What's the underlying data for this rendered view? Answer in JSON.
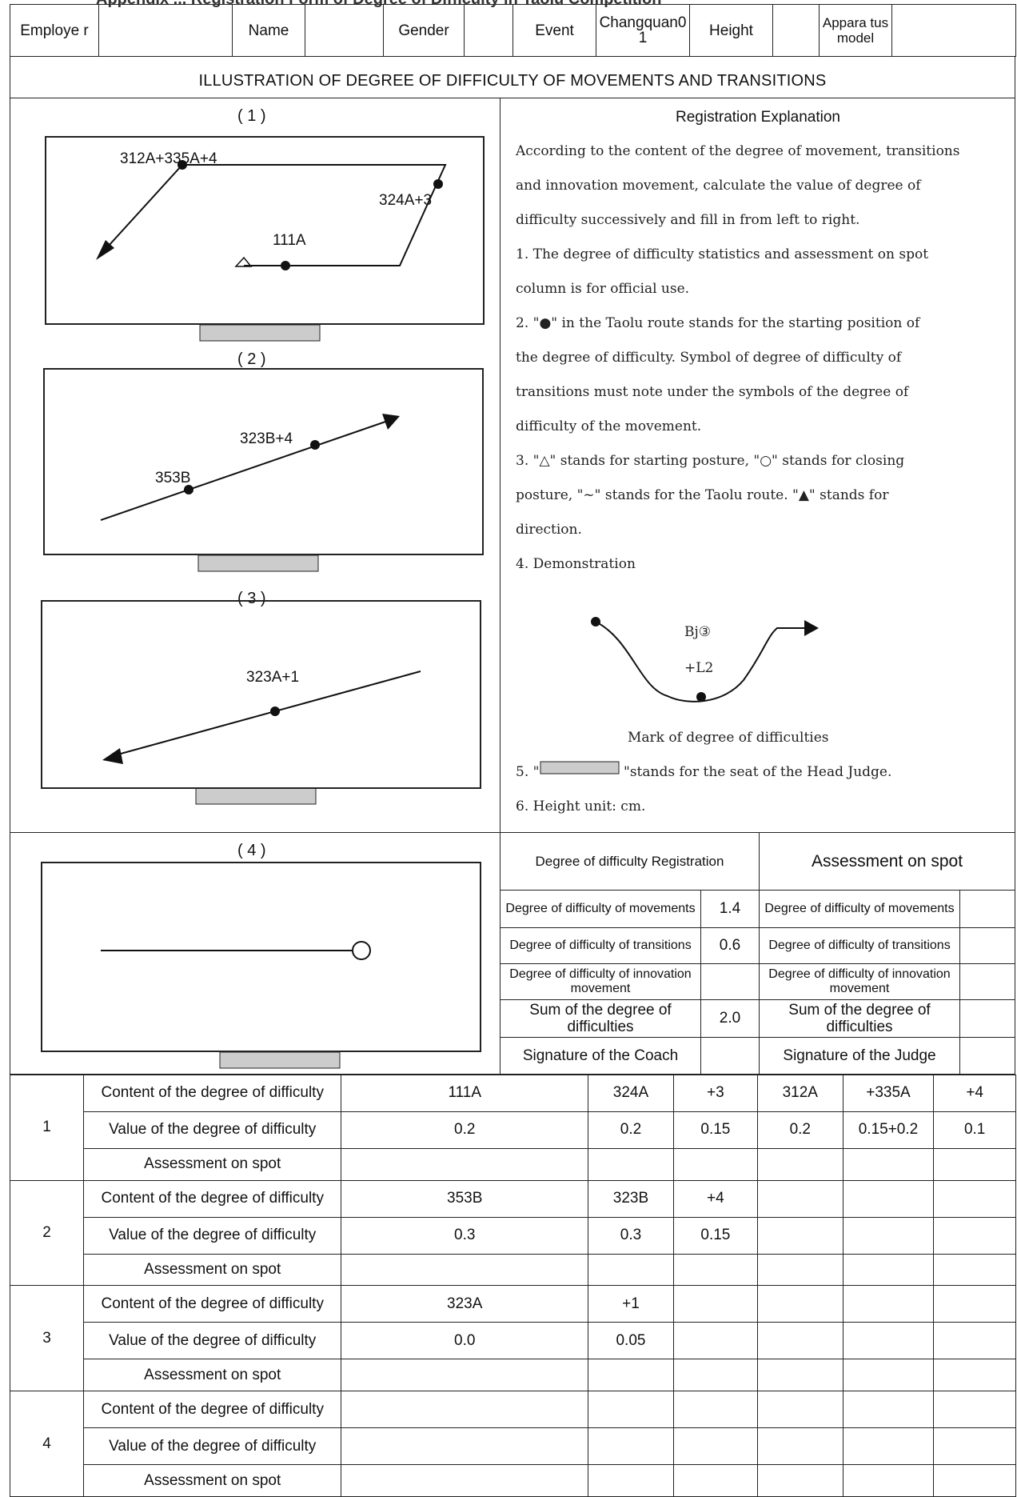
{
  "top_cut_text": "Appendix ... Registration Form of Degree of Difficulty in Taolu Competition",
  "header": {
    "employer_label": "Employe r",
    "name_label": "Name",
    "gender_label": "Gender",
    "event_label": "Event",
    "event_value": "Changquan0 1",
    "height_label": "Height",
    "apparatus_label": "Appara tus model"
  },
  "illustration_title": "ILLUSTRATION OF DEGREE OF DIFFICULTY OF MOVEMENTS AND TRANSITIONS",
  "diagrams": [
    {
      "caption": "( 1 )",
      "labels": [
        "312A+335A+4",
        "324A+3",
        "111A"
      ]
    },
    {
      "caption": "( 2 )",
      "labels": [
        "323B+4",
        "353B"
      ]
    },
    {
      "caption": "( 3 )",
      "labels": [
        "323A+1"
      ]
    },
    {
      "caption": "( 4 )",
      "labels": []
    }
  ],
  "explanation": {
    "title": "Registration Explanation",
    "lines": [
      "According to the content of the degree of movement, transitions",
      "and innovation movement, calculate the value of degree of",
      "difficulty successively and fill in from left to right.",
      "1. The degree of difficulty statistics and assessment on spot",
      "column is for official use.",
      "2. \"●\" in the Taolu route stands for the starting position of",
      "the degree of difficulty. Symbol of degree of difficulty of",
      "transitions must note under the symbols of the degree of",
      "difficulty of the movement.",
      "3. \"△\" stands for starting posture, \"○\" stands for closing",
      "posture, \"~\" stands for the Taolu route. \"▲\" stands for",
      "direction.",
      "4. Demonstration"
    ],
    "demo_label_1": "Bj③",
    "demo_label_2": "+L2",
    "demo_caption": "Mark of degree of difficulties",
    "line5_prefix": "5. \"",
    "line5_suffix": "\"stands for the seat of the Head Judge.",
    "line6": "6. Height unit: cm."
  },
  "registration": {
    "left_title": "Degree of difficulty Registration",
    "right_title": "Assessment on spot",
    "rows": [
      {
        "label": "Degree of difficulty of movements",
        "value": "1.4",
        "right": "Degree of difficulty of movements"
      },
      {
        "label": "Degree of difficulty of transitions",
        "value": "0.6",
        "right": "Degree of difficulty of transitions"
      },
      {
        "label": "Degree of difficulty of innovation movement",
        "value": "",
        "right": "Degree of difficulty of innovation movement"
      },
      {
        "label": "Sum of the degree of difficulties",
        "value": "2.0",
        "right": "Sum of the degree of difficulties"
      }
    ],
    "coach_signature": "Signature of the Coach",
    "judge_signature": "Signature of the Judge"
  },
  "grid": {
    "row_labels": [
      "Content of the degree of difficulty",
      "Value of the degree of difficulty",
      "Assessment on spot"
    ],
    "sections": [
      {
        "number": "1",
        "content": [
          "111A",
          "324A",
          "+3",
          "312A",
          "+335A",
          "+4"
        ],
        "values": [
          "0.2",
          "0.2",
          "0.15",
          "0.2",
          "0.15+0.2",
          "0.1"
        ]
      },
      {
        "number": "2",
        "content": [
          "353B",
          "323B",
          "+4",
          "",
          "",
          ""
        ],
        "values": [
          "0.3",
          "0.3",
          "0.15",
          "",
          "",
          ""
        ]
      },
      {
        "number": "3",
        "content": [
          "323A",
          "+1",
          "",
          "",
          "",
          ""
        ],
        "values": [
          "0.0",
          "0.05",
          "",
          "",
          "",
          ""
        ]
      },
      {
        "number": "4",
        "content": [
          "",
          "",
          "",
          "",
          "",
          ""
        ],
        "values": [
          "",
          "",
          "",
          "",
          "",
          ""
        ]
      }
    ]
  }
}
